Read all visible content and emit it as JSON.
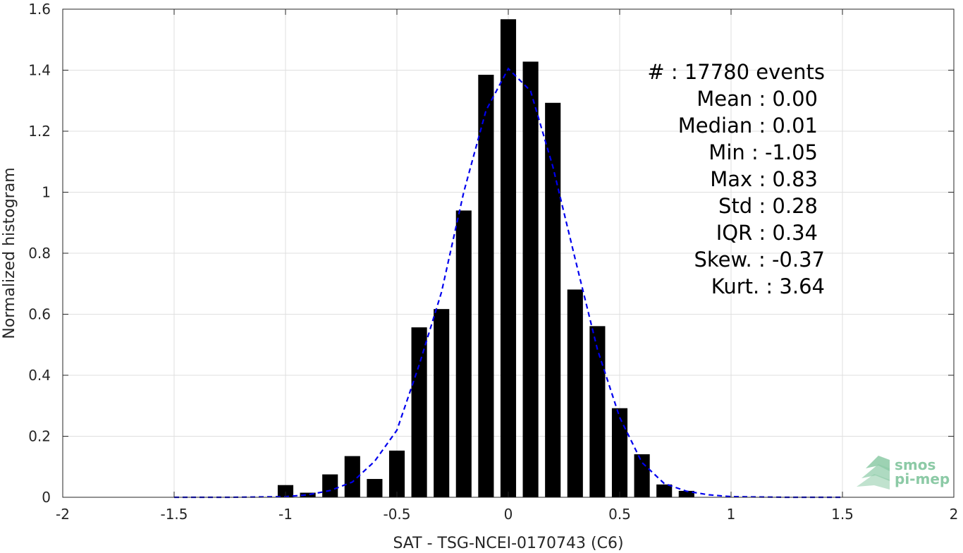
{
  "chart_data": {
    "type": "bar",
    "xlabel": "SAT - TSG-NCEI-0170743 (C6)",
    "ylabel": "Normalized histogram",
    "xlim": [
      -2,
      2
    ],
    "ylim": [
      0,
      1.6
    ],
    "xticks": [
      -2,
      -1.5,
      -1,
      -0.5,
      0,
      0.5,
      1,
      1.5,
      2
    ],
    "xtick_labels": [
      "-2",
      "-1.5",
      "-1",
      "-0.5",
      "0",
      "0.5",
      "1",
      "1.5",
      "2"
    ],
    "yticks": [
      0,
      0.2,
      0.4,
      0.6,
      0.8,
      1,
      1.2,
      1.4,
      1.6
    ],
    "ytick_labels": [
      "0",
      "0.2",
      "0.4",
      "0.6",
      "0.8",
      "1",
      "1.2",
      "1.4",
      "1.6"
    ],
    "grid": true,
    "bar_color": "#000000",
    "bars": {
      "x": [
        -1.0,
        -0.9,
        -0.8,
        -0.7,
        -0.6,
        -0.5,
        -0.4,
        -0.3,
        -0.2,
        -0.1,
        0.0,
        0.1,
        0.2,
        0.3,
        0.4,
        0.5,
        0.6,
        0.7,
        0.8
      ],
      "values": [
        0.04,
        0.015,
        0.075,
        0.135,
        0.06,
        0.153,
        0.557,
        0.617,
        0.94,
        1.385,
        1.567,
        1.428,
        1.293,
        0.681,
        0.561,
        0.292,
        0.141,
        0.042,
        0.021
      ],
      "width": 0.07
    },
    "fit_curve": {
      "style": "dashed",
      "color": "#0000ee",
      "x": [
        -1.5,
        -1.25,
        -1.0,
        -0.9,
        -0.8,
        -0.7,
        -0.6,
        -0.5,
        -0.4,
        -0.3,
        -0.2,
        -0.1,
        0.0,
        0.1,
        0.2,
        0.3,
        0.4,
        0.5,
        0.6,
        0.7,
        0.8,
        0.9,
        1.0,
        1.25,
        1.5
      ],
      "y": [
        0.0,
        0.0,
        0.002,
        0.008,
        0.022,
        0.05,
        0.118,
        0.22,
        0.434,
        0.672,
        1.0,
        1.268,
        1.405,
        1.332,
        1.084,
        0.782,
        0.485,
        0.262,
        0.114,
        0.045,
        0.02,
        0.008,
        0.002,
        0.0,
        0.0
      ]
    },
    "annotations": [
      "#  : 17780 events",
      "Mean : 0.00",
      "Median : 0.01",
      "Min : -1.05",
      "Max : 0.83",
      "Std : 0.28",
      "IQR : 0.34",
      "Skew. : -0.37",
      "Kurt. : 3.64"
    ]
  },
  "logo": {
    "line1": "smos",
    "line2": "pi-mep",
    "color": "#8ccaa6"
  }
}
